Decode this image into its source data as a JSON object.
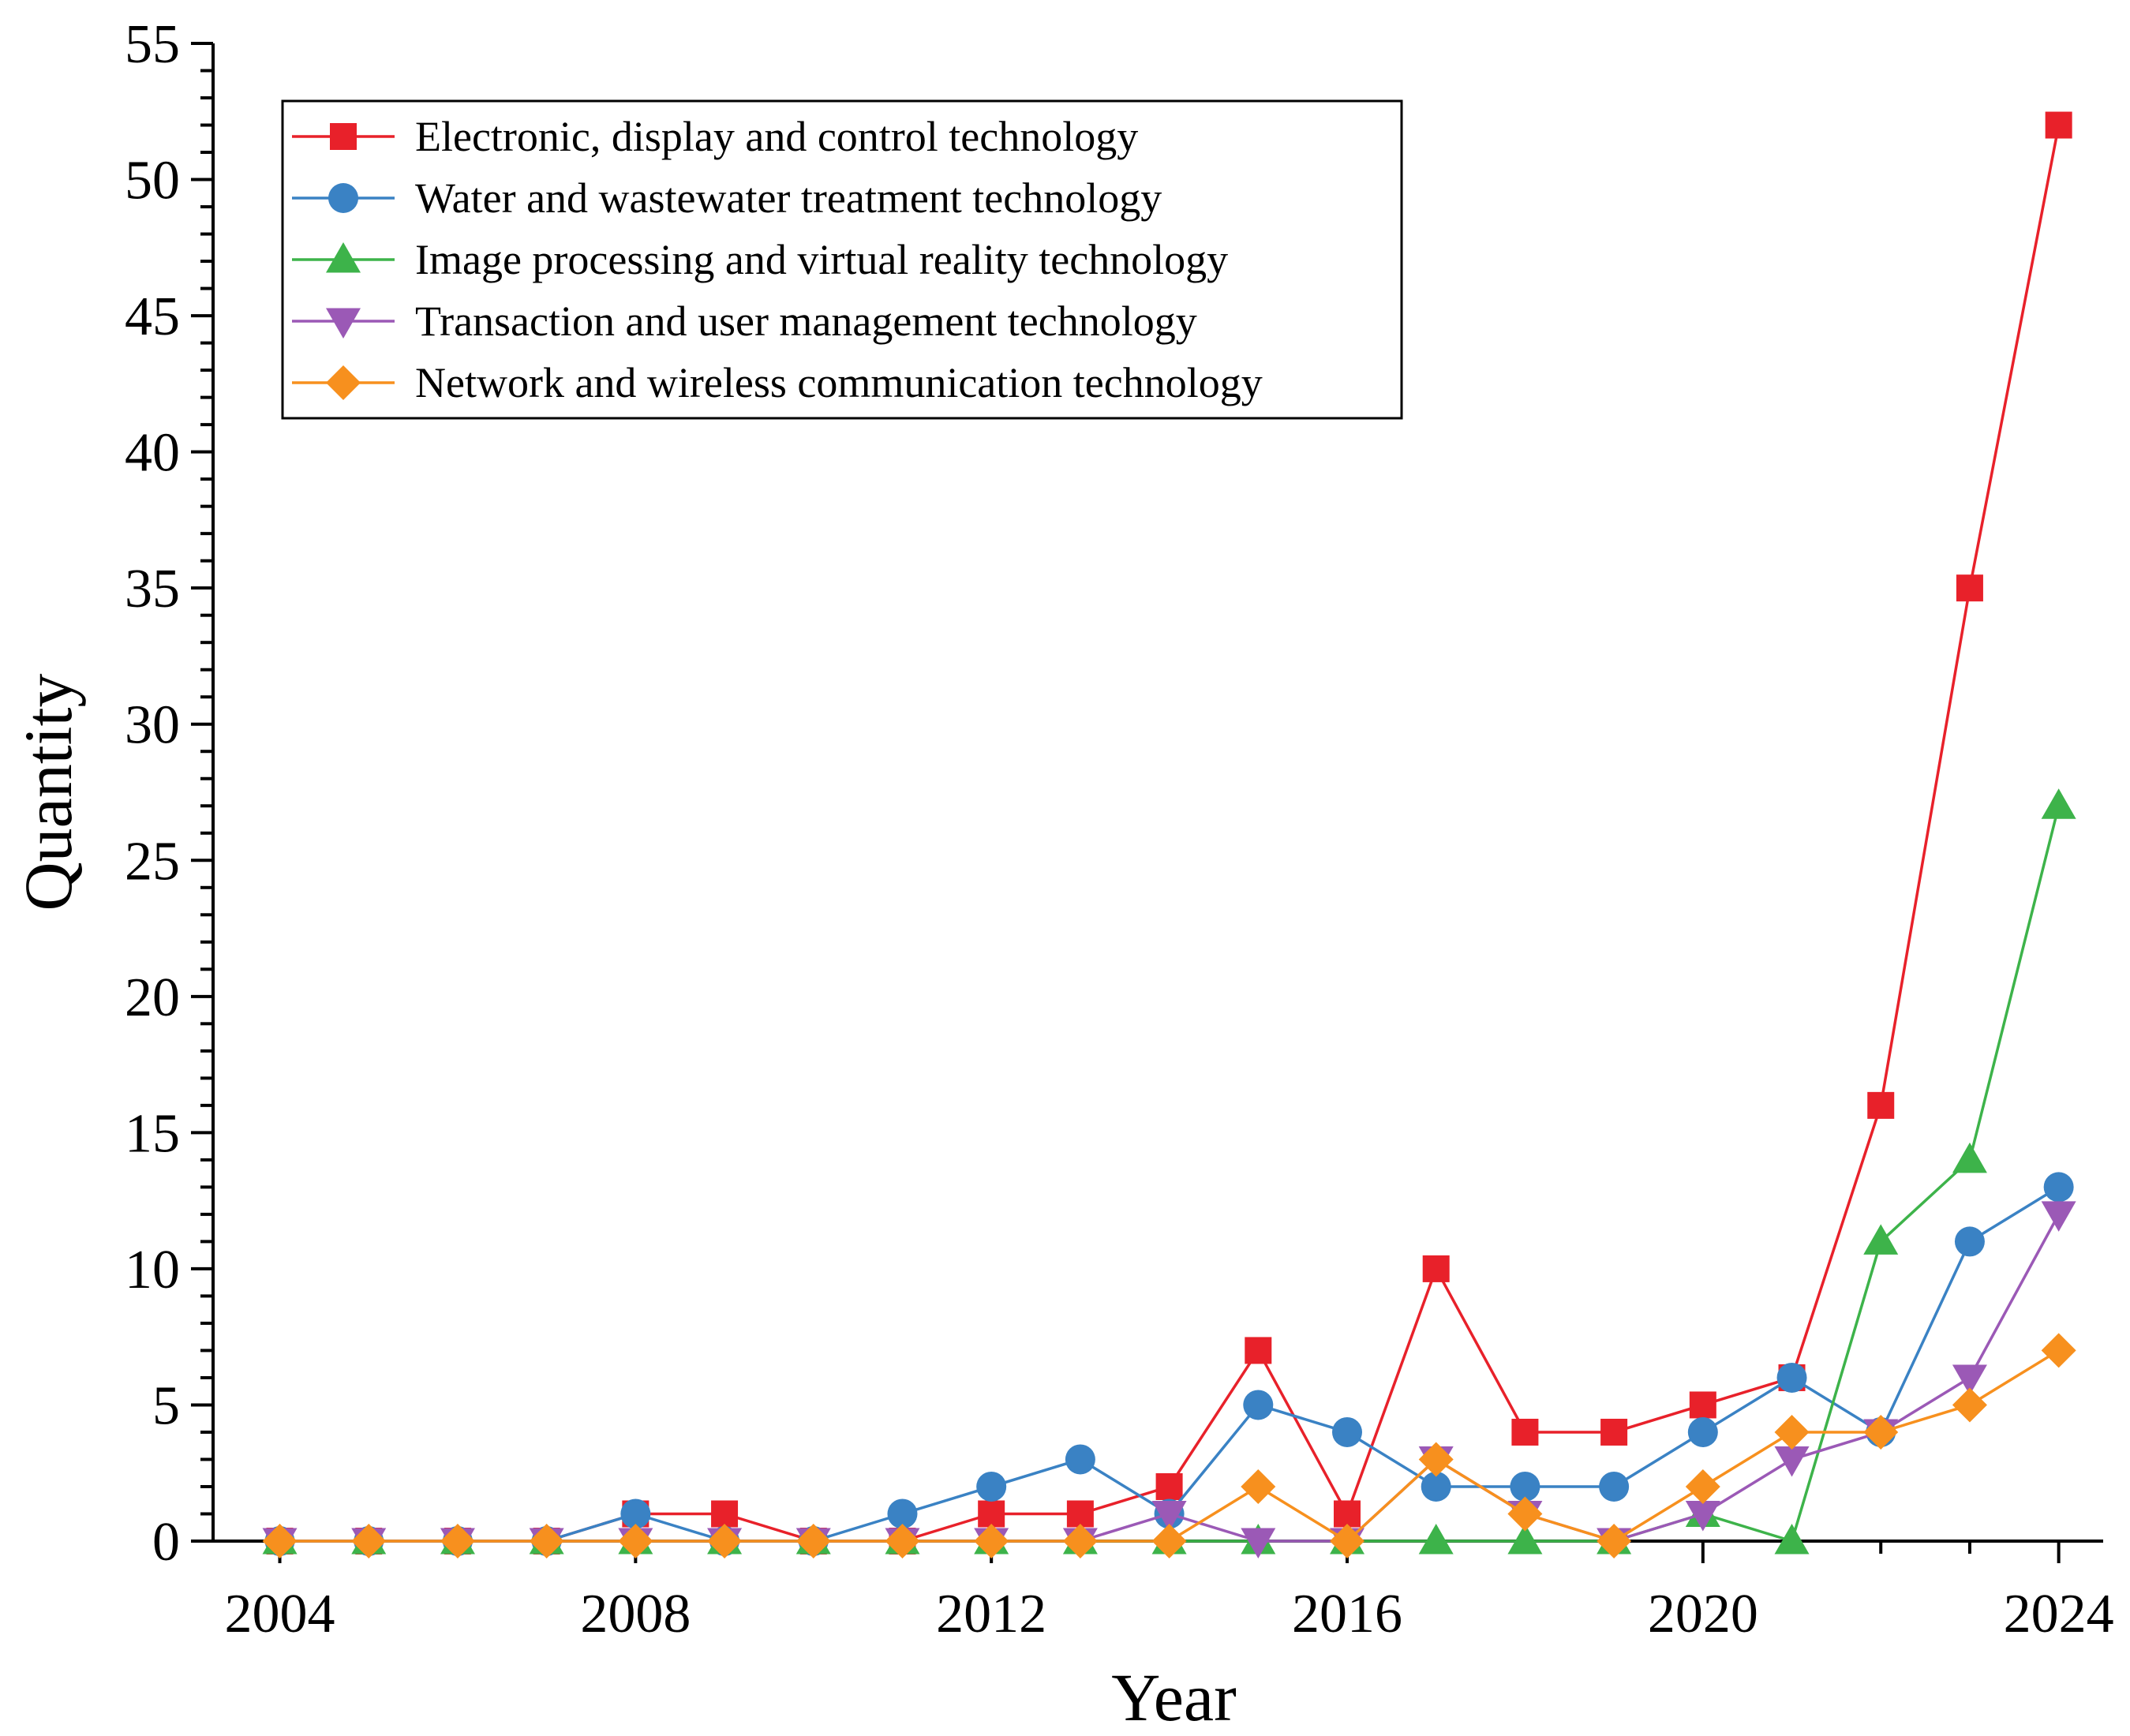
{
  "chart_data": {
    "type": "line",
    "title": "",
    "xlabel": "Year",
    "ylabel": "Quantity",
    "xlim": [
      2003.25,
      2024.5
    ],
    "ylim": [
      0,
      55
    ],
    "x_ticks": [
      2004,
      2008,
      2012,
      2016,
      2020,
      2024
    ],
    "y_ticks": [
      0,
      5,
      10,
      15,
      20,
      25,
      30,
      35,
      40,
      45,
      50,
      55
    ],
    "grid": false,
    "legend_position": "top-left",
    "x": [
      2004,
      2005,
      2006,
      2007,
      2008,
      2009,
      2010,
      2011,
      2012,
      2013,
      2014,
      2015,
      2016,
      2017,
      2018,
      2019,
      2020,
      2021,
      2022,
      2023,
      2024
    ],
    "series": [
      {
        "name": "Electronic, display and control technology",
        "color": "#e8212a",
        "marker": "square",
        "values": [
          0,
          0,
          0,
          0,
          1,
          1,
          0,
          0,
          1,
          1,
          2,
          7,
          1,
          10,
          4,
          4,
          5,
          6,
          16,
          35,
          52
        ]
      },
      {
        "name": "Water and wastewater treatment technology",
        "color": "#3a82c4",
        "marker": "circle",
        "values": [
          0,
          0,
          0,
          0,
          1,
          0,
          0,
          1,
          2,
          3,
          1,
          5,
          4,
          2,
          2,
          2,
          4,
          6,
          4,
          11,
          13
        ]
      },
      {
        "name": "Image processing and virtual reality technology",
        "color": "#3db34a",
        "marker": "triangle-up",
        "values": [
          0,
          0,
          0,
          0,
          0,
          0,
          0,
          0,
          0,
          0,
          0,
          0,
          0,
          0,
          0,
          0,
          1,
          0,
          11,
          14,
          27
        ]
      },
      {
        "name": "Transaction and user management technology",
        "color": "#9b59b6",
        "marker": "triangle-down",
        "values": [
          0,
          0,
          0,
          0,
          0,
          0,
          0,
          0,
          0,
          0,
          1,
          0,
          0,
          3,
          1,
          0,
          1,
          3,
          4,
          6,
          12
        ]
      },
      {
        "name": "Network and wireless communication technology",
        "color": "#f7901e",
        "marker": "diamond",
        "values": [
          0,
          0,
          0,
          0,
          0,
          0,
          0,
          0,
          0,
          0,
          0,
          2,
          0,
          3,
          1,
          0,
          2,
          4,
          4,
          5,
          7
        ]
      }
    ]
  }
}
